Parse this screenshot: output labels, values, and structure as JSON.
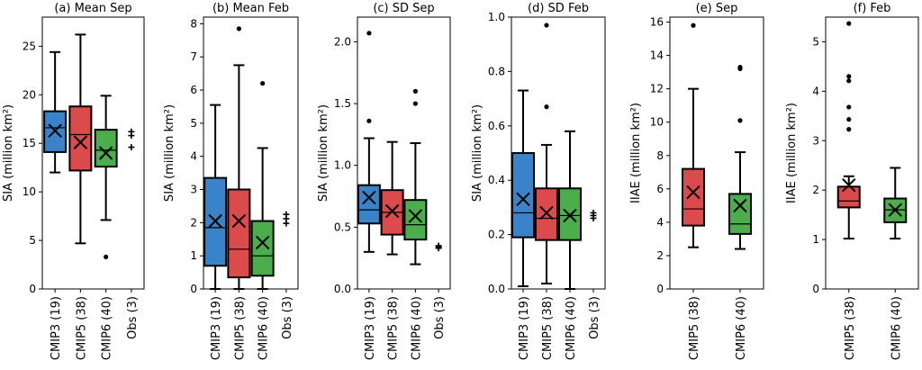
{
  "chart_data": [
    {
      "type": "box",
      "title": "(a) Mean Sep",
      "ylabel": "SIA (million km²)",
      "ylim": [
        0,
        28
      ],
      "yticks": [
        0,
        5,
        10,
        15,
        20,
        25
      ],
      "categories": [
        "CMIP3 (19)",
        "CMIP5 (38)",
        "CMIP6 (40)",
        "Obs (3)"
      ],
      "boxes": [
        {
          "color": "#3b83c8",
          "whislo": 12.0,
          "q1": 14.1,
          "med": 16.6,
          "q3": 18.3,
          "whishi": 24.4,
          "mean": 16.3,
          "fliers": []
        },
        {
          "color": "#dc4b4b",
          "whislo": 4.7,
          "q1": 12.2,
          "med": 15.9,
          "q3": 18.8,
          "whishi": 26.2,
          "mean": 15.1,
          "fliers": []
        },
        {
          "color": "#4cad4c",
          "whislo": 7.1,
          "q1": 12.6,
          "med": 14.3,
          "q3": 16.4,
          "whishi": 19.9,
          "mean": 14.0,
          "fliers": [
            3.3
          ]
        }
      ],
      "obs": [
        16.2,
        15.8,
        14.6
      ]
    },
    {
      "type": "box",
      "title": "(b) Mean Feb",
      "ylabel": "SIA (million km²)",
      "ylim": [
        0,
        8.2
      ],
      "yticks": [
        0,
        1,
        2,
        3,
        4,
        5,
        6,
        7,
        8
      ],
      "categories": [
        "CMIP3 (19)",
        "CMIP5 (38)",
        "CMIP6 (40)",
        "Obs (3)"
      ],
      "boxes": [
        {
          "color": "#3b83c8",
          "whislo": 0.0,
          "q1": 0.7,
          "med": 1.85,
          "q3": 3.35,
          "whishi": 5.55,
          "mean": 2.05,
          "fliers": []
        },
        {
          "color": "#dc4b4b",
          "whislo": 0.0,
          "q1": 0.35,
          "med": 1.2,
          "q3": 3.0,
          "whishi": 6.75,
          "mean": 2.05,
          "fliers": [
            7.85
          ]
        },
        {
          "color": "#4cad4c",
          "whislo": 0.0,
          "q1": 0.4,
          "med": 1.0,
          "q3": 2.05,
          "whishi": 4.25,
          "mean": 1.4,
          "fliers": [
            6.2
          ]
        }
      ],
      "obs": [
        2.25,
        2.12,
        1.98
      ]
    },
    {
      "type": "box",
      "title": "(c) SD Sep",
      "ylabel": "SIA (million km²)",
      "ylim": [
        0,
        2.2
      ],
      "yticks": [
        0.0,
        0.5,
        1.0,
        1.5,
        2.0
      ],
      "categories": [
        "CMIP3 (19)",
        "CMIP5 (38)",
        "CMIP6 (40)",
        "Obs (3)"
      ],
      "boxes": [
        {
          "color": "#3b83c8",
          "whislo": 0.3,
          "q1": 0.53,
          "med": 0.64,
          "q3": 0.84,
          "whishi": 1.22,
          "mean": 0.74,
          "fliers": [
            1.36,
            2.07
          ]
        },
        {
          "color": "#dc4b4b",
          "whislo": 0.28,
          "q1": 0.44,
          "med": 0.62,
          "q3": 0.8,
          "whishi": 1.19,
          "mean": 0.63,
          "fliers": []
        },
        {
          "color": "#4cad4c",
          "whislo": 0.2,
          "q1": 0.4,
          "med": 0.52,
          "q3": 0.72,
          "whishi": 1.18,
          "mean": 0.59,
          "fliers": [
            1.5,
            1.6
          ]
        }
      ],
      "obs": [
        0.35,
        0.34,
        0.33
      ]
    },
    {
      "type": "box",
      "title": "(d) SD Feb",
      "ylabel": "SIA (million km²)",
      "ylim": [
        0,
        1.0
      ],
      "yticks": [
        0.0,
        0.2,
        0.4,
        0.6,
        0.8,
        1.0
      ],
      "categories": [
        "CMIP3 (19)",
        "CMIP5 (38)",
        "CMIP6 (40)",
        "Obs (3)"
      ],
      "boxes": [
        {
          "color": "#3b83c8",
          "whislo": 0.01,
          "q1": 0.19,
          "med": 0.28,
          "q3": 0.5,
          "whishi": 0.73,
          "mean": 0.33,
          "fliers": []
        },
        {
          "color": "#dc4b4b",
          "whislo": 0.02,
          "q1": 0.18,
          "med": 0.26,
          "q3": 0.37,
          "whishi": 0.53,
          "mean": 0.28,
          "fliers": [
            0.67,
            0.97
          ]
        },
        {
          "color": "#4cad4c",
          "whislo": 0.0,
          "q1": 0.18,
          "med": 0.27,
          "q3": 0.37,
          "whishi": 0.58,
          "mean": 0.27,
          "fliers": []
        }
      ],
      "obs": [
        0.28,
        0.27,
        0.26
      ]
    },
    {
      "type": "box",
      "title": "(e) Sep",
      "ylabel": "IIAE (million km²)",
      "ylim": [
        0,
        16.3
      ],
      "yticks": [
        0,
        2,
        4,
        6,
        8,
        10,
        12,
        14,
        16
      ],
      "categories": [
        "CMIP5 (38)",
        "CMIP6 (40)"
      ],
      "boxes": [
        {
          "color": "#dc4b4b",
          "whislo": 2.5,
          "q1": 3.8,
          "med": 4.8,
          "q3": 7.2,
          "whishi": 12.0,
          "mean": 5.8,
          "fliers": [
            15.8
          ]
        },
        {
          "color": "#4cad4c",
          "whislo": 2.4,
          "q1": 3.3,
          "med": 3.9,
          "q3": 5.7,
          "whishi": 8.2,
          "mean": 5.0,
          "fliers": [
            10.1,
            13.2,
            13.3
          ]
        }
      ],
      "obs": []
    },
    {
      "type": "box",
      "title": "(f) Feb",
      "ylabel": "IIAE (million km²)",
      "ylim": [
        0,
        5.5
      ],
      "yticks": [
        0,
        1,
        2,
        3,
        4,
        5
      ],
      "categories": [
        "CMIP5 (38)",
        "CMIP6 (40)"
      ],
      "boxes": [
        {
          "color": "#dc4b4b",
          "whislo": 1.02,
          "q1": 1.65,
          "med": 1.78,
          "q3": 2.07,
          "whishi": 2.28,
          "mean": 2.1,
          "fliers": [
            3.23,
            3.43,
            3.68,
            4.21,
            4.3,
            5.37
          ]
        },
        {
          "color": "#4cad4c",
          "whislo": 1.02,
          "q1": 1.35,
          "med": 1.6,
          "q3": 1.83,
          "whishi": 2.45,
          "mean": 1.6,
          "fliers": []
        }
      ],
      "obs": []
    }
  ]
}
